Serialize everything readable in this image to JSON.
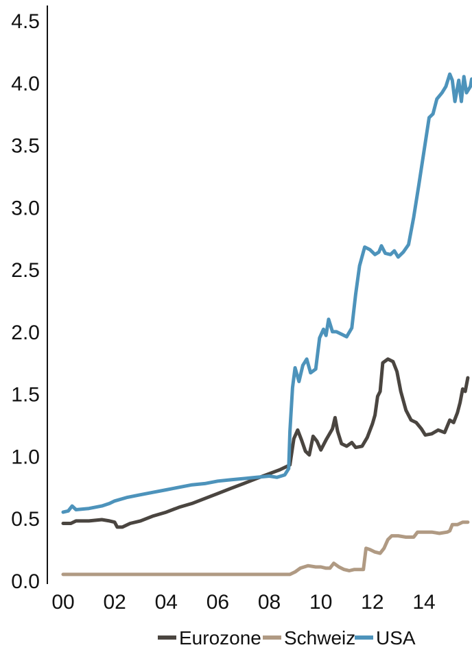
{
  "chart_data": {
    "type": "line",
    "title": "",
    "xlabel": "",
    "ylabel": "",
    "xlim": [
      1999.6,
      2015.85
    ],
    "ylim": [
      0,
      4.6
    ],
    "grid": false,
    "legend_position": "bottom-right",
    "x_ticks": [
      {
        "value": 2000,
        "label": "00"
      },
      {
        "value": 2002,
        "label": "02"
      },
      {
        "value": 2004,
        "label": "04"
      },
      {
        "value": 2006,
        "label": "06"
      },
      {
        "value": 2008,
        "label": "08"
      },
      {
        "value": 2010,
        "label": "10"
      },
      {
        "value": 2012,
        "label": "12"
      },
      {
        "value": 2014,
        "label": "14"
      }
    ],
    "y_ticks": [
      {
        "value": 0.0,
        "label": "0.0"
      },
      {
        "value": 0.5,
        "label": "0.5"
      },
      {
        "value": 1.0,
        "label": "1.0"
      },
      {
        "value": 1.5,
        "label": "1.5"
      },
      {
        "value": 2.0,
        "label": "2.0"
      },
      {
        "value": 2.5,
        "label": "2.5"
      },
      {
        "value": 3.0,
        "label": "3.0"
      },
      {
        "value": 3.5,
        "label": "3.5"
      },
      {
        "value": 4.0,
        "label": "4.0"
      },
      {
        "value": 4.5,
        "label": "4.5"
      }
    ],
    "series": [
      {
        "name": "Eurozone",
        "color": "#4a4540",
        "points": [
          [
            2000.0,
            0.46
          ],
          [
            2000.3,
            0.46
          ],
          [
            2000.5,
            0.48
          ],
          [
            2001.0,
            0.48
          ],
          [
            2001.5,
            0.49
          ],
          [
            2001.8,
            0.48
          ],
          [
            2002.0,
            0.47
          ],
          [
            2002.1,
            0.43
          ],
          [
            2002.3,
            0.43
          ],
          [
            2002.6,
            0.46
          ],
          [
            2003.0,
            0.48
          ],
          [
            2003.5,
            0.52
          ],
          [
            2004.0,
            0.55
          ],
          [
            2004.5,
            0.59
          ],
          [
            2005.0,
            0.62
          ],
          [
            2005.5,
            0.66
          ],
          [
            2006.0,
            0.7
          ],
          [
            2006.5,
            0.74
          ],
          [
            2007.0,
            0.78
          ],
          [
            2007.5,
            0.82
          ],
          [
            2008.0,
            0.86
          ],
          [
            2008.4,
            0.89
          ],
          [
            2008.7,
            0.92
          ],
          [
            2008.8,
            0.93
          ],
          [
            2008.95,
            1.14
          ],
          [
            2009.1,
            1.21
          ],
          [
            2009.25,
            1.13
          ],
          [
            2009.4,
            1.04
          ],
          [
            2009.55,
            1.01
          ],
          [
            2009.7,
            1.16
          ],
          [
            2009.85,
            1.12
          ],
          [
            2010.0,
            1.05
          ],
          [
            2010.2,
            1.13
          ],
          [
            2010.45,
            1.22
          ],
          [
            2010.55,
            1.31
          ],
          [
            2010.65,
            1.2
          ],
          [
            2010.8,
            1.1
          ],
          [
            2011.0,
            1.08
          ],
          [
            2011.2,
            1.11
          ],
          [
            2011.35,
            1.07
          ],
          [
            2011.6,
            1.08
          ],
          [
            2011.8,
            1.15
          ],
          [
            2012.0,
            1.26
          ],
          [
            2012.1,
            1.33
          ],
          [
            2012.2,
            1.48
          ],
          [
            2012.3,
            1.52
          ],
          [
            2012.4,
            1.75
          ],
          [
            2012.6,
            1.78
          ],
          [
            2012.8,
            1.76
          ],
          [
            2012.95,
            1.68
          ],
          [
            2013.1,
            1.52
          ],
          [
            2013.3,
            1.37
          ],
          [
            2013.5,
            1.29
          ],
          [
            2013.7,
            1.27
          ],
          [
            2013.9,
            1.22
          ],
          [
            2014.05,
            1.17
          ],
          [
            2014.3,
            1.18
          ],
          [
            2014.55,
            1.21
          ],
          [
            2014.8,
            1.19
          ],
          [
            2015.0,
            1.29
          ],
          [
            2015.15,
            1.27
          ],
          [
            2015.3,
            1.35
          ],
          [
            2015.4,
            1.43
          ],
          [
            2015.5,
            1.54
          ],
          [
            2015.6,
            1.52
          ],
          [
            2015.7,
            1.63
          ]
        ]
      },
      {
        "name": "Schweiz",
        "color": "#b09a83",
        "points": [
          [
            2000.0,
            0.05
          ],
          [
            2002.0,
            0.05
          ],
          [
            2004.0,
            0.05
          ],
          [
            2006.0,
            0.05
          ],
          [
            2008.0,
            0.05
          ],
          [
            2008.8,
            0.05
          ],
          [
            2009.0,
            0.07
          ],
          [
            2009.2,
            0.1
          ],
          [
            2009.5,
            0.12
          ],
          [
            2009.8,
            0.11
          ],
          [
            2010.0,
            0.11
          ],
          [
            2010.2,
            0.1
          ],
          [
            2010.35,
            0.1
          ],
          [
            2010.5,
            0.14
          ],
          [
            2010.7,
            0.11
          ],
          [
            2010.9,
            0.09
          ],
          [
            2011.1,
            0.08
          ],
          [
            2011.3,
            0.09
          ],
          [
            2011.55,
            0.09
          ],
          [
            2011.65,
            0.09
          ],
          [
            2011.75,
            0.26
          ],
          [
            2011.9,
            0.25
          ],
          [
            2012.1,
            0.23
          ],
          [
            2012.3,
            0.22
          ],
          [
            2012.45,
            0.26
          ],
          [
            2012.6,
            0.33
          ],
          [
            2012.75,
            0.36
          ],
          [
            2013.0,
            0.36
          ],
          [
            2013.3,
            0.35
          ],
          [
            2013.6,
            0.35
          ],
          [
            2013.75,
            0.39
          ],
          [
            2014.0,
            0.39
          ],
          [
            2014.3,
            0.39
          ],
          [
            2014.6,
            0.38
          ],
          [
            2014.9,
            0.39
          ],
          [
            2015.0,
            0.4
          ],
          [
            2015.1,
            0.45
          ],
          [
            2015.3,
            0.45
          ],
          [
            2015.5,
            0.47
          ],
          [
            2015.7,
            0.47
          ]
        ]
      },
      {
        "name": "USA",
        "color": "#4d93bb",
        "points": [
          [
            2000.0,
            0.55
          ],
          [
            2000.2,
            0.56
          ],
          [
            2000.35,
            0.6
          ],
          [
            2000.5,
            0.57
          ],
          [
            2001.0,
            0.58
          ],
          [
            2001.5,
            0.6
          ],
          [
            2001.8,
            0.62
          ],
          [
            2002.0,
            0.64
          ],
          [
            2002.5,
            0.67
          ],
          [
            2003.0,
            0.69
          ],
          [
            2003.5,
            0.71
          ],
          [
            2004.0,
            0.73
          ],
          [
            2004.5,
            0.75
          ],
          [
            2005.0,
            0.77
          ],
          [
            2005.5,
            0.78
          ],
          [
            2006.0,
            0.8
          ],
          [
            2006.5,
            0.81
          ],
          [
            2007.0,
            0.82
          ],
          [
            2007.5,
            0.83
          ],
          [
            2008.0,
            0.84
          ],
          [
            2008.3,
            0.83
          ],
          [
            2008.6,
            0.85
          ],
          [
            2008.75,
            0.9
          ],
          [
            2008.8,
            1.2
          ],
          [
            2008.9,
            1.55
          ],
          [
            2009.0,
            1.71
          ],
          [
            2009.15,
            1.6
          ],
          [
            2009.3,
            1.73
          ],
          [
            2009.45,
            1.78
          ],
          [
            2009.6,
            1.67
          ],
          [
            2009.8,
            1.7
          ],
          [
            2009.95,
            1.95
          ],
          [
            2010.1,
            2.02
          ],
          [
            2010.2,
            1.97
          ],
          [
            2010.3,
            2.1
          ],
          [
            2010.45,
            2.0
          ],
          [
            2010.6,
            2.0
          ],
          [
            2010.8,
            1.98
          ],
          [
            2011.0,
            1.96
          ],
          [
            2011.2,
            2.03
          ],
          [
            2011.35,
            2.3
          ],
          [
            2011.5,
            2.53
          ],
          [
            2011.7,
            2.68
          ],
          [
            2011.9,
            2.66
          ],
          [
            2012.1,
            2.62
          ],
          [
            2012.25,
            2.64
          ],
          [
            2012.35,
            2.69
          ],
          [
            2012.5,
            2.63
          ],
          [
            2012.7,
            2.62
          ],
          [
            2012.85,
            2.65
          ],
          [
            2013.0,
            2.6
          ],
          [
            2013.2,
            2.64
          ],
          [
            2013.4,
            2.7
          ],
          [
            2013.6,
            2.92
          ],
          [
            2013.8,
            3.18
          ],
          [
            2014.0,
            3.45
          ],
          [
            2014.2,
            3.72
          ],
          [
            2014.35,
            3.75
          ],
          [
            2014.5,
            3.87
          ],
          [
            2014.7,
            3.92
          ],
          [
            2014.85,
            3.97
          ],
          [
            2015.0,
            4.07
          ],
          [
            2015.1,
            4.02
          ],
          [
            2015.2,
            3.85
          ],
          [
            2015.35,
            4.02
          ],
          [
            2015.45,
            3.85
          ],
          [
            2015.55,
            4.05
          ],
          [
            2015.65,
            3.92
          ],
          [
            2015.8,
            3.97
          ],
          [
            2015.85,
            4.03
          ]
        ]
      }
    ]
  }
}
